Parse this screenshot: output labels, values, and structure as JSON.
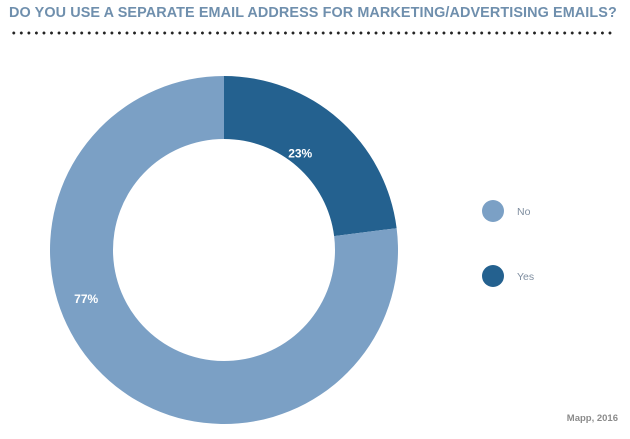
{
  "chart_data": {
    "type": "pie",
    "title": "DO YOU USE A SEPARATE EMAIL ADDRESS FOR MARKETING/ADVERTISING EMAILS?",
    "slices": [
      {
        "label": "Yes",
        "value": 23,
        "display": "23%",
        "color": "#24618f"
      },
      {
        "label": "No",
        "value": 77,
        "display": "77%",
        "color": "#7ba0c5"
      }
    ],
    "legend": {
      "placement": "right",
      "entries": [
        {
          "label": "No",
          "color": "#7ba0c5"
        },
        {
          "label": "Yes",
          "color": "#24618f"
        }
      ]
    },
    "donut": true
  },
  "source": "Mapp, 2016",
  "colors": {
    "title": "#6f8fad",
    "source": "#8b8b8b",
    "legend_text": "#7f8ea0"
  }
}
